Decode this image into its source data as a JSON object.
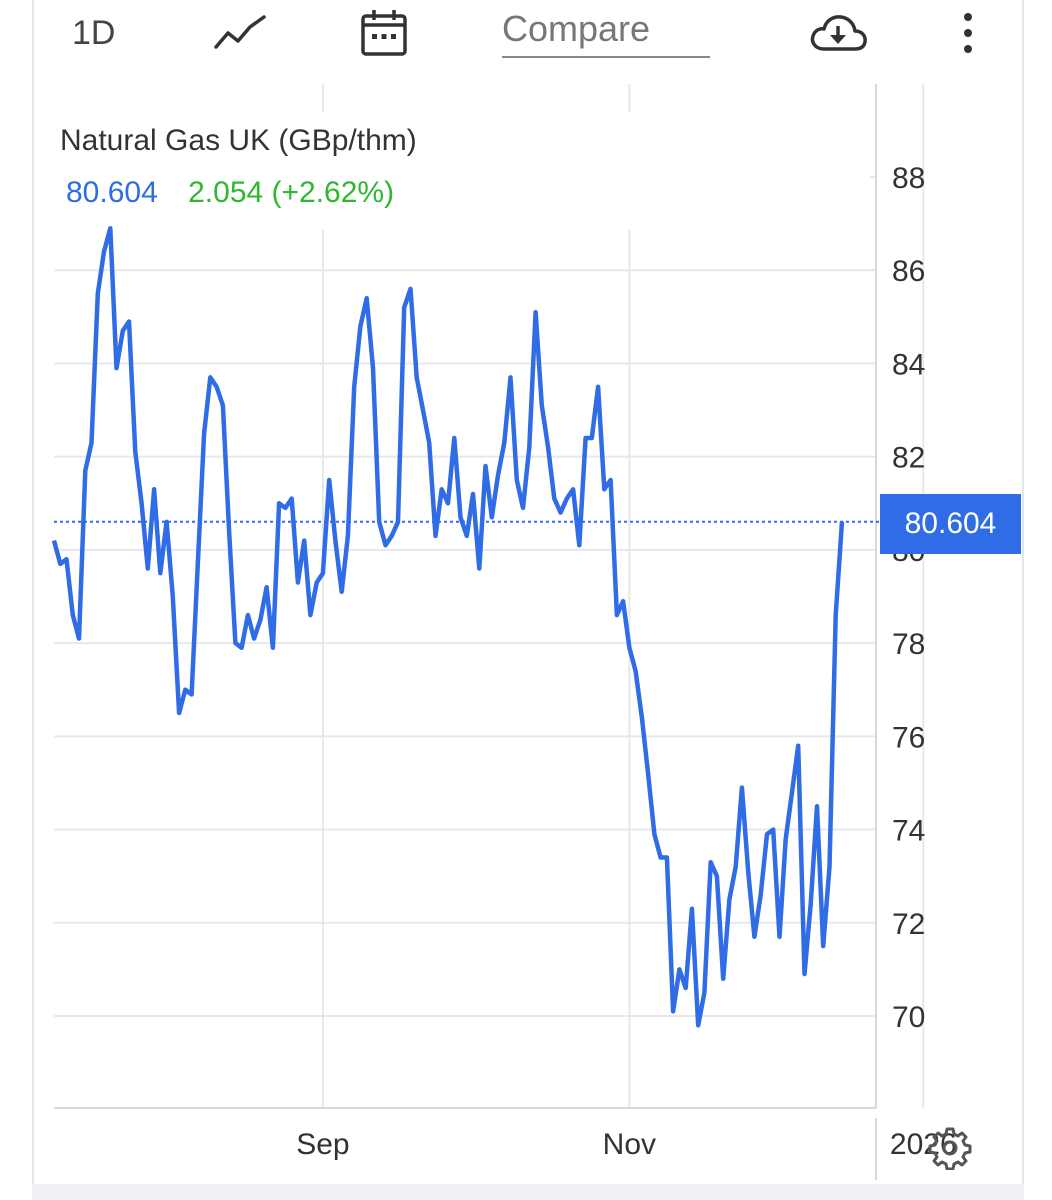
{
  "toolbar": {
    "timeframe": "1D",
    "chart_type_icon": "line-chart-icon",
    "calendar_icon": "calendar-icon",
    "compare_placeholder": "Compare",
    "download_icon": "cloud-download-icon",
    "menu_icon": "kebab-menu-icon"
  },
  "legend": {
    "title": "Natural Gas UK (GBp/thm)",
    "last": "80.604",
    "change": "2.054 (+2.62%)"
  },
  "price_tag": "80.604",
  "settings_icon": "gear-icon",
  "colors": {
    "line": "#2f6ce5",
    "change": "#2eb82e",
    "grid": "#e6e8ec"
  },
  "chart_data": {
    "type": "line",
    "title": "Natural Gas UK (GBp/thm)",
    "xlabel": "",
    "ylabel": "",
    "ylim": [
      68,
      90
    ],
    "y_ticks": [
      70,
      72,
      74,
      76,
      78,
      80,
      82,
      84,
      86,
      88
    ],
    "x_ticks": [
      {
        "label": "Sep",
        "index": 43
      },
      {
        "label": "Nov",
        "index": 92
      },
      {
        "label": "2026",
        "index": 139
      }
    ],
    "grid": true,
    "last_value": 80.604,
    "series": [
      {
        "values": [
          80.2,
          79.7,
          79.8,
          78.6,
          78.1,
          81.7,
          82.3,
          85.5,
          86.4,
          86.9,
          83.9,
          84.7,
          84.9,
          82.1,
          81.0,
          79.6,
          81.3,
          79.5,
          80.6,
          79.0,
          76.5,
          77.0,
          76.9,
          79.7,
          82.5,
          83.7,
          83.5,
          83.1,
          80.4,
          78.0,
          77.9,
          78.6,
          78.1,
          78.5,
          79.2,
          77.9,
          81.0,
          80.9,
          81.1,
          79.3,
          80.2,
          78.6,
          79.3,
          79.5,
          81.5,
          80.2,
          79.1,
          80.3,
          83.5,
          84.8,
          85.4,
          83.9,
          80.6,
          80.1,
          80.3,
          80.6,
          85.2,
          85.6,
          83.7,
          83.0,
          82.3,
          80.3,
          81.3,
          81.0,
          82.4,
          80.7,
          80.3,
          81.2,
          79.6,
          81.8,
          80.7,
          81.6,
          82.3,
          83.7,
          81.5,
          80.9,
          82.2,
          85.1,
          83.1,
          82.2,
          81.1,
          80.8,
          81.1,
          81.3,
          80.1,
          82.4,
          82.4,
          83.5,
          81.3,
          81.5,
          78.6,
          78.9,
          77.9,
          77.4,
          76.4,
          75.2,
          73.9,
          73.4,
          73.4,
          70.1,
          71.0,
          70.6,
          72.3,
          69.8,
          70.5,
          73.3,
          73.0,
          70.8,
          72.5,
          73.2,
          74.9,
          73.1,
          71.7,
          72.6,
          73.9,
          74.0,
          71.7,
          73.8,
          74.8,
          75.8,
          70.9,
          72.4,
          74.5,
          71.5,
          73.2,
          78.6,
          80.604
        ]
      }
    ]
  }
}
